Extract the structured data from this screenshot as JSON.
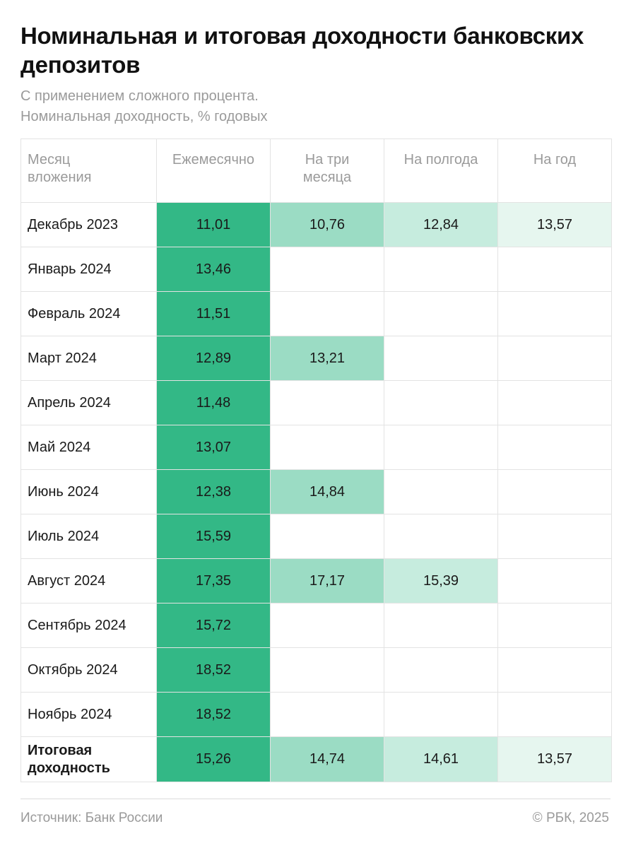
{
  "title": "Номинальная и итоговая доходности банковских депозитов",
  "subtitle_line1": "С применением сложного процента.",
  "subtitle_line2": "Номинальная доходность, % годовых",
  "colors": {
    "monthly": "#33b886",
    "three_months": "#9bdcc4",
    "half_year": "#c6ecde",
    "year": "#e6f6ef"
  },
  "chart_data": {
    "type": "table",
    "columns": [
      "Месяц вложения",
      "Ежемесячно",
      "На три месяца",
      "На полгода",
      "На год"
    ],
    "rows": [
      {
        "month": "Декабрь 2023",
        "values": [
          "11,01",
          "10,76",
          "12,84",
          "13,57"
        ]
      },
      {
        "month": "Январь 2024",
        "values": [
          "13,46",
          "",
          "",
          ""
        ]
      },
      {
        "month": "Февраль 2024",
        "values": [
          "11,51",
          "",
          "",
          ""
        ]
      },
      {
        "month": "Март 2024",
        "values": [
          "12,89",
          "13,21",
          "",
          ""
        ]
      },
      {
        "month": "Апрель 2024",
        "values": [
          "11,48",
          "",
          "",
          ""
        ]
      },
      {
        "month": "Май 2024",
        "values": [
          "13,07",
          "",
          "",
          ""
        ]
      },
      {
        "month": "Июнь 2024",
        "values": [
          "12,38",
          "14,84",
          "",
          ""
        ]
      },
      {
        "month": "Июль 2024",
        "values": [
          "15,59",
          "",
          "",
          ""
        ]
      },
      {
        "month": "Август 2024",
        "values": [
          "17,35",
          "17,17",
          "15,39",
          ""
        ]
      },
      {
        "month": "Сентябрь 2024",
        "values": [
          "15,72",
          "",
          "",
          ""
        ]
      },
      {
        "month": "Октябрь 2024",
        "values": [
          "18,52",
          "",
          "",
          ""
        ]
      },
      {
        "month": "Ноябрь 2024",
        "values": [
          "18,52",
          "",
          "",
          ""
        ]
      }
    ],
    "total": {
      "label": "Итоговая доходность",
      "values": [
        "15,26",
        "14,74",
        "14,61",
        "13,57"
      ]
    }
  },
  "footer": {
    "source": "Источник: Банк России",
    "copyright": "© РБК, 2025"
  }
}
